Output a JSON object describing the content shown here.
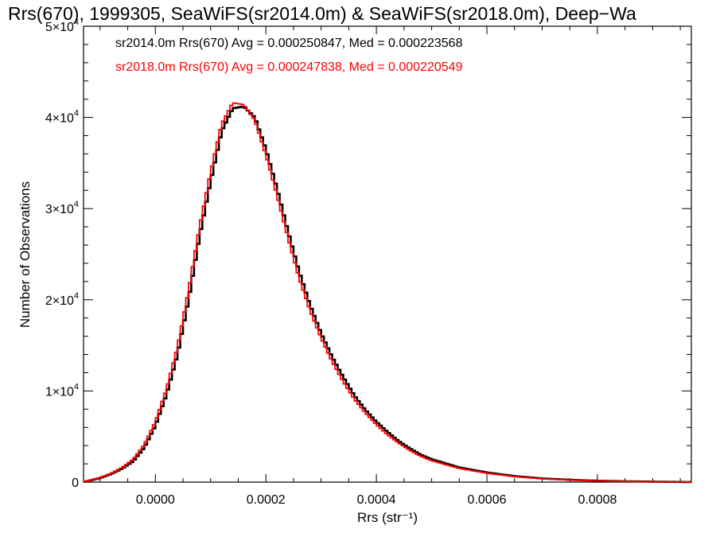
{
  "chart_data": {
    "type": "line",
    "title": "Rrs(670), 1999305, SeaWiFS(sr2014.0m) & SeaWiFS(sr2018.0m), Deep−Wa",
    "xlabel": "Rrs (str⁻¹)",
    "ylabel": "Number of Observations",
    "xlim": [
      -0.00013,
      0.00097
    ],
    "ylim": [
      0,
      50000
    ],
    "x_ticks": [
      {
        "value": 0.0,
        "label": "0.0000"
      },
      {
        "value": 0.0002,
        "label": "0.0002"
      },
      {
        "value": 0.0004,
        "label": "0.0004"
      },
      {
        "value": 0.0006,
        "label": "0.0006"
      },
      {
        "value": 0.0008,
        "label": "0.0008"
      }
    ],
    "y_ticks": [
      {
        "value": 0,
        "base": "0",
        "exp": ""
      },
      {
        "value": 10000,
        "base": "1×10",
        "exp": "4"
      },
      {
        "value": 20000,
        "base": "2×10",
        "exp": "4"
      },
      {
        "value": 30000,
        "base": "3×10",
        "exp": "4"
      },
      {
        "value": 40000,
        "base": "4×10",
        "exp": "4"
      },
      {
        "value": 50000,
        "base": "5×10",
        "exp": "4"
      }
    ],
    "grid": false,
    "legend_position": "top-left",
    "series": [
      {
        "name": "sr2014.0m Rrs(670) Avg = 0.000250847, Med = 0.000223568",
        "color": "#000000",
        "x": [
          -0.00013,
          -0.0001,
          -8e-05,
          -6e-05,
          -4e-05,
          -2e-05,
          0.0,
          2e-05,
          4e-05,
          6e-05,
          8e-05,
          0.0001,
          0.00012,
          0.00014,
          0.00016,
          0.00018,
          0.0002,
          0.00022,
          0.00024,
          0.00026,
          0.00028,
          0.0003,
          0.00032,
          0.00034,
          0.00036,
          0.00038,
          0.0004,
          0.00042,
          0.00044,
          0.00046,
          0.00048,
          0.0005,
          0.00055,
          0.0006,
          0.00065,
          0.0007,
          0.00075,
          0.0008,
          0.00085,
          0.0009,
          0.00097
        ],
        "y": [
          0,
          450,
          900,
          1500,
          2300,
          3800,
          6200,
          9600,
          14000,
          20000,
          27000,
          33000,
          38500,
          41000,
          41200,
          40000,
          36500,
          32200,
          27500,
          23100,
          19400,
          16300,
          13700,
          11500,
          9500,
          7900,
          6600,
          5500,
          4500,
          3700,
          3000,
          2500,
          1600,
          1050,
          650,
          400,
          250,
          150,
          90,
          50,
          0
        ]
      },
      {
        "name": "sr2018.0m Rrs(670) Avg = 0.000247838, Med = 0.000220549",
        "color": "#ff0000",
        "x": [
          -0.00013,
          -0.0001,
          -8e-05,
          -6e-05,
          -4e-05,
          -2e-05,
          0.0,
          2e-05,
          4e-05,
          6e-05,
          8e-05,
          0.0001,
          0.00012,
          0.00014,
          0.00016,
          0.00018,
          0.0002,
          0.00022,
          0.00024,
          0.00026,
          0.00028,
          0.0003,
          0.00032,
          0.00034,
          0.00036,
          0.00038,
          0.0004,
          0.00042,
          0.00044,
          0.00046,
          0.00048,
          0.0005,
          0.00055,
          0.0006,
          0.00065,
          0.0007,
          0.00075,
          0.0008,
          0.00085,
          0.0009,
          0.00097
        ],
        "y": [
          0,
          500,
          950,
          1600,
          2500,
          4100,
          6600,
          10200,
          14800,
          21000,
          28000,
          34000,
          39300,
          41600,
          41400,
          39700,
          35900,
          31500,
          26800,
          22400,
          18800,
          15800,
          13200,
          11000,
          9100,
          7600,
          6300,
          5200,
          4300,
          3500,
          2850,
          2350,
          1500,
          980,
          600,
          370,
          230,
          140,
          80,
          45,
          0
        ]
      }
    ]
  }
}
